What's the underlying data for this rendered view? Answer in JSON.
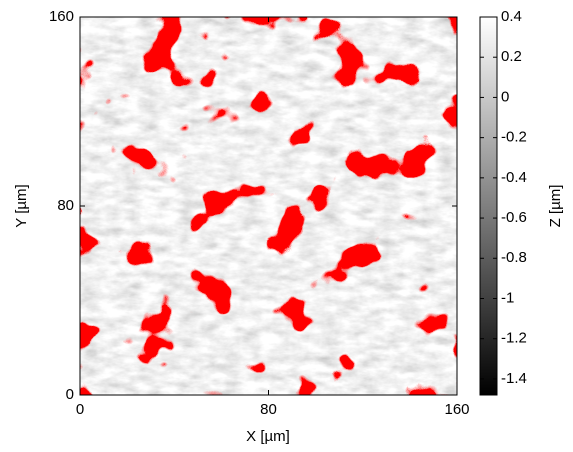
{
  "chart_data": {
    "type": "heatmap",
    "xlabel": "X [µm]",
    "ylabel": "Y [µm]",
    "colorbar_label": "Z [µm]",
    "xlim": [
      0,
      160
    ],
    "ylim": [
      0,
      160
    ],
    "xticks": [
      0,
      80,
      160
    ],
    "yticks": [
      0,
      80,
      160
    ],
    "zlim": [
      -1.48,
      0.4
    ],
    "zticks": [
      0.4,
      0.2,
      0,
      -0.2,
      -0.4,
      -0.6,
      -0.8,
      -1,
      -1.2,
      -1.4
    ],
    "colormap": "gray",
    "highlight_color": "#ff0000"
  }
}
